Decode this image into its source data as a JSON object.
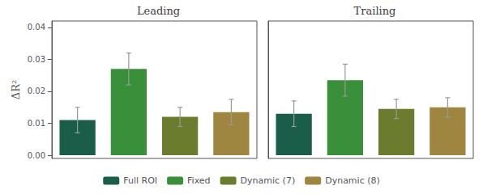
{
  "chart_data": [
    {
      "type": "bar",
      "title": "Leading",
      "ylabel": "ΔR²",
      "categories": [
        null,
        null,
        null,
        null
      ],
      "series": [
        {
          "name": "Full ROI",
          "color": "#1a5e4a",
          "values": [
            0.011,
            null,
            null,
            null
          ],
          "errors": [
            0.004,
            null,
            null,
            null
          ]
        },
        {
          "name": "Fixed",
          "color": "#3a8f3a",
          "values": [
            null,
            0.027,
            null,
            null
          ],
          "errors": [
            null,
            0.005,
            null,
            null
          ]
        },
        {
          "name": "Dynamic (7)",
          "color": "#6b7c2e",
          "values": [
            null,
            null,
            0.012,
            null
          ],
          "errors": [
            null,
            null,
            0.003,
            null
          ]
        },
        {
          "name": "Dynamic (8)",
          "color": "#9e8540",
          "values": [
            null,
            null,
            null,
            0.0135
          ],
          "errors": [
            null,
            null,
            null,
            0.004
          ]
        }
      ],
      "ylim": [
        -0.001,
        0.042
      ],
      "yticks": [
        {
          "value": 0.0,
          "label": "0.00"
        },
        0.01,
        0.02,
        0.03,
        0.04
      ],
      "grid": false,
      "legend": "bottom",
      "tick_labels": "y"
    },
    {
      "type": "bar",
      "title": "Trailing",
      "categories": [
        null,
        null,
        null,
        null
      ],
      "series": [
        {
          "name": "Full ROI",
          "color": "#1a5e4a",
          "values": [
            0.013,
            null,
            null,
            null
          ],
          "errors": [
            0.004,
            null,
            null,
            null
          ]
        },
        {
          "name": "Fixed",
          "color": "#3a8f3a",
          "values": [
            null,
            0.0235,
            null,
            null
          ],
          "errors": [
            null,
            0.005,
            null,
            null
          ]
        },
        {
          "name": "Dynamic (7)",
          "color": "#6b7c2e",
          "values": [
            null,
            null,
            0.0145,
            null
          ],
          "errors": [
            null,
            null,
            0.003,
            null
          ]
        },
        {
          "name": "Dynamic (8)",
          "color": "#9e8540",
          "values": [
            null,
            null,
            null,
            0.015
          ],
          "errors": [
            null,
            null,
            null,
            0.003
          ]
        }
      ],
      "ylim": [
        -0.001,
        0.042
      ],
      "yticks": [
        {
          "value": 0.0,
          "label": "0.00"
        },
        0.01,
        0.02,
        0.03,
        0.04
      ],
      "grid": false,
      "legend": "bottom",
      "tick_labels": false
    }
  ]
}
